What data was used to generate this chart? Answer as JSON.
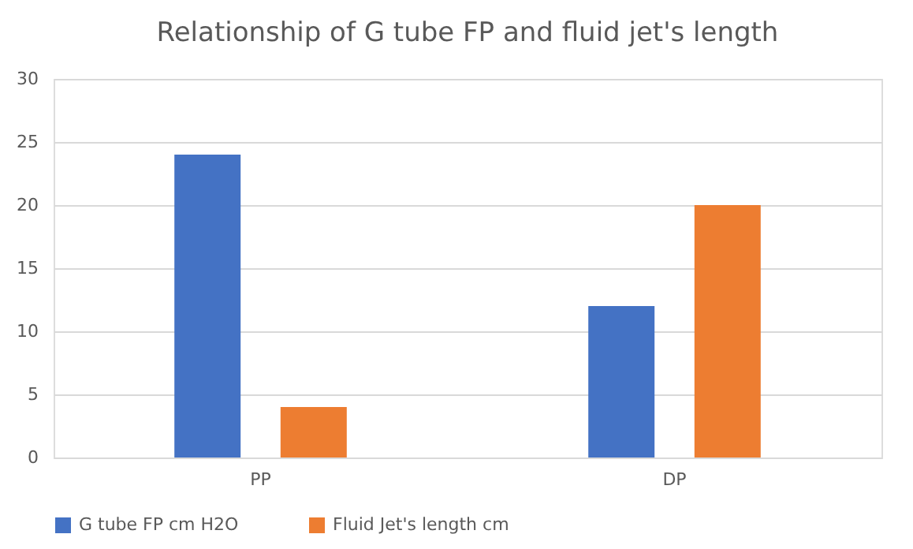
{
  "chart_data": {
    "type": "bar",
    "title": "Relationship of G tube FP and fluid jet's length",
    "categories": [
      "PP",
      "DP"
    ],
    "series": [
      {
        "name": "G tube  FP cm H2O",
        "color": "#4472c4",
        "values": [
          24,
          12
        ]
      },
      {
        "name": "Fluid Jet's length cm",
        "color": "#ed7d31",
        "values": [
          4,
          20
        ]
      }
    ],
    "ylim": [
      0,
      30
    ],
    "yticks": [
      0,
      5,
      10,
      15,
      20,
      25,
      30
    ],
    "grid": "y",
    "legend": "bottom"
  }
}
